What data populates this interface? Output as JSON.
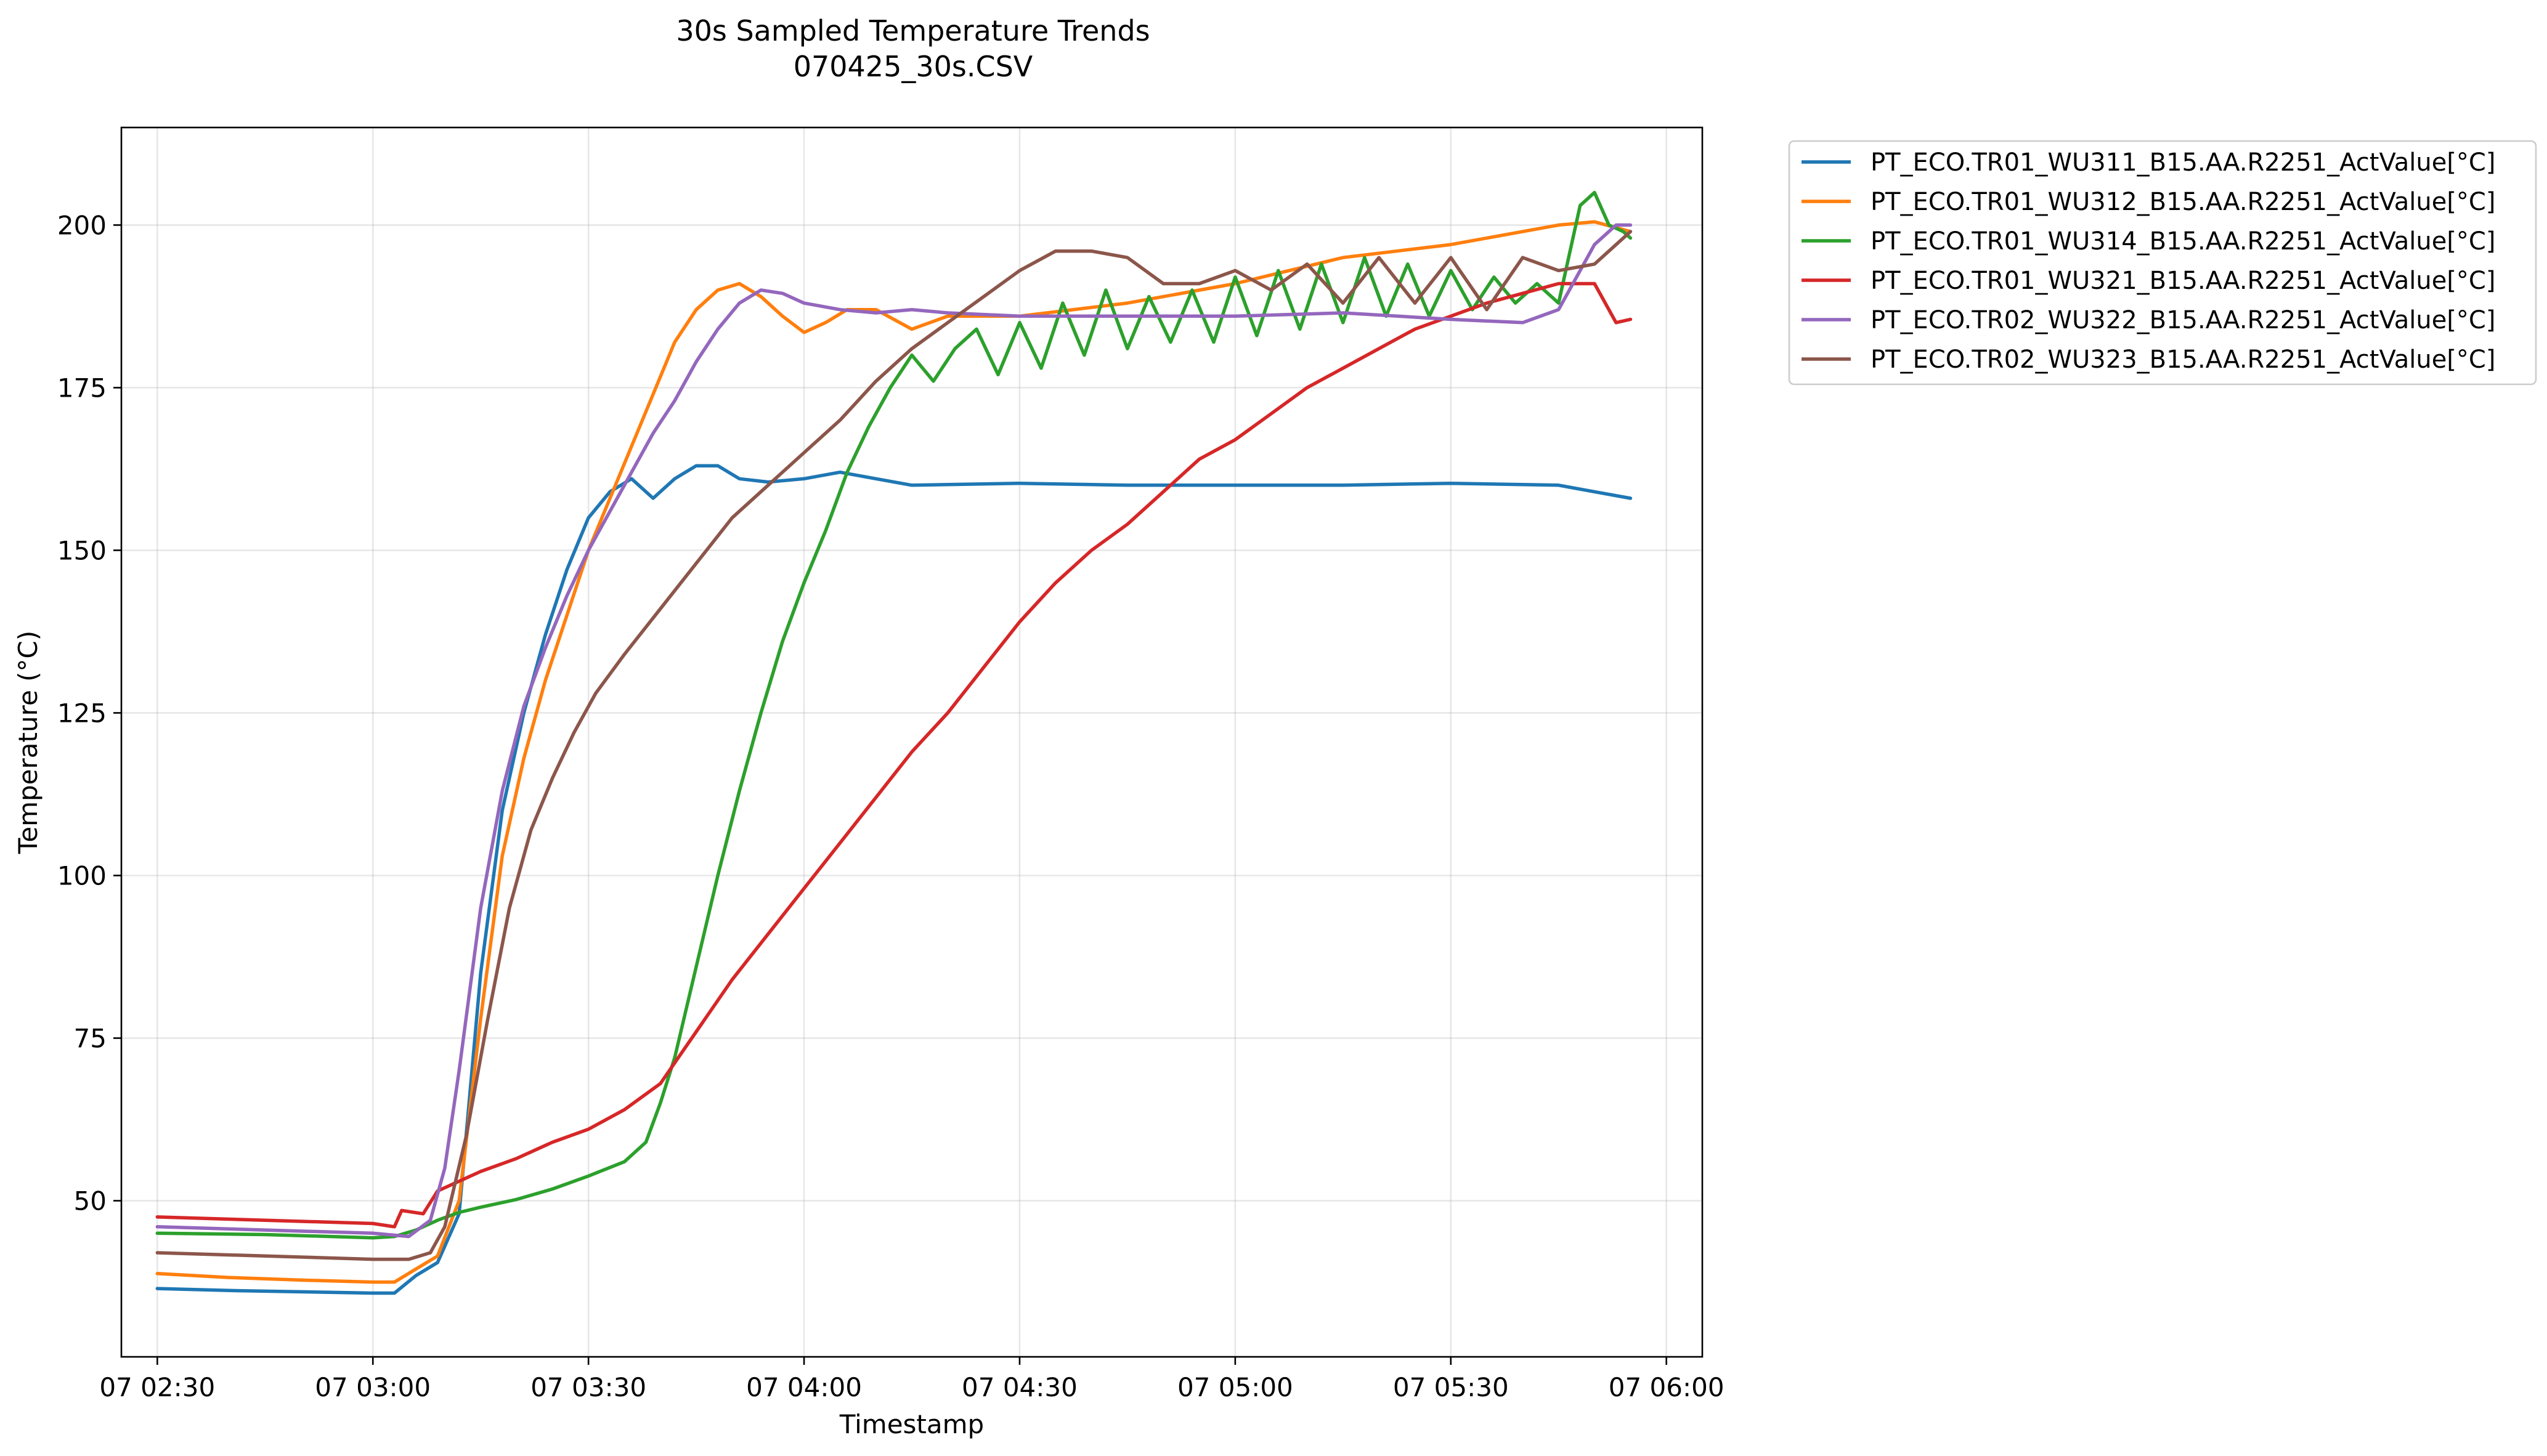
{
  "chart_data": {
    "type": "line",
    "title": "30s Sampled Temperature Trends",
    "subtitle": "070425_30s.CSV",
    "xlabel": "Timestamp",
    "ylabel": "Temperature (°C)",
    "x_type": "time",
    "xlim": [
      "07 02:25",
      "07 06:05"
    ],
    "ylim": [
      26,
      215
    ],
    "x_ticks": [
      {
        "label": "07 02:30",
        "value": "07 02:30"
      },
      {
        "label": "07 03:00",
        "value": "07 03:00"
      },
      {
        "label": "07 03:30",
        "value": "07 03:30"
      },
      {
        "label": "07 04:00",
        "value": "07 04:00"
      },
      {
        "label": "07 04:30",
        "value": "07 04:30"
      },
      {
        "label": "07 05:00",
        "value": "07 05:00"
      },
      {
        "label": "07 05:30",
        "value": "07 05:30"
      },
      {
        "label": "07 06:00",
        "value": "07 06:00"
      }
    ],
    "y_ticks": [
      50,
      75,
      100,
      125,
      150,
      175,
      200
    ],
    "grid": true,
    "legend_position": "outside-top-right",
    "series": [
      {
        "name": "PT_ECO.TR01_WU311_B15.AA.R2251_ActValue[°C]",
        "color": "#1f77b4",
        "x": [
          "07 02:30",
          "07 02:40",
          "07 02:50",
          "07 03:00",
          "07 03:03",
          "07 03:06",
          "07 03:09",
          "07 03:12",
          "07 03:15",
          "07 03:18",
          "07 03:21",
          "07 03:24",
          "07 03:27",
          "07 03:30",
          "07 03:33",
          "07 03:36",
          "07 03:39",
          "07 03:42",
          "07 03:45",
          "07 03:48",
          "07 03:51",
          "07 03:55",
          "07 04:00",
          "07 04:05",
          "07 04:10",
          "07 04:15",
          "07 04:30",
          "07 04:45",
          "07 05:00",
          "07 05:15",
          "07 05:30",
          "07 05:45",
          "07 05:50",
          "07 05:55"
        ],
        "y": [
          36.5,
          36.2,
          36.0,
          35.8,
          35.8,
          38.5,
          40.5,
          48,
          85,
          110,
          125,
          137,
          147,
          155,
          159,
          161,
          158,
          161,
          163,
          163,
          161,
          160.5,
          161,
          162,
          161,
          160,
          160.3,
          160,
          160,
          160,
          160.3,
          160,
          159,
          158
        ]
      },
      {
        "name": "PT_ECO.TR01_WU312_B15.AA.R2251_ActValue[°C]",
        "color": "#ff7f0e",
        "x": [
          "07 02:30",
          "07 02:40",
          "07 02:50",
          "07 03:00",
          "07 03:03",
          "07 03:06",
          "07 03:09",
          "07 03:12",
          "07 03:15",
          "07 03:18",
          "07 03:21",
          "07 03:24",
          "07 03:27",
          "07 03:30",
          "07 03:33",
          "07 03:36",
          "07 03:39",
          "07 03:42",
          "07 03:45",
          "07 03:48",
          "07 03:51",
          "07 03:54",
          "07 03:57",
          "07 04:00",
          "07 04:03",
          "07 04:06",
          "07 04:10",
          "07 04:15",
          "07 04:20",
          "07 04:30",
          "07 04:45",
          "07 05:00",
          "07 05:15",
          "07 05:30",
          "07 05:45",
          "07 05:50",
          "07 05:55"
        ],
        "y": [
          38.8,
          38.2,
          37.8,
          37.5,
          37.5,
          39.5,
          41.5,
          50,
          78,
          103,
          118,
          130,
          140,
          150,
          158,
          166,
          174,
          182,
          187,
          190,
          191,
          189,
          186,
          183.5,
          185,
          187,
          187,
          184,
          186,
          186,
          188,
          191,
          195,
          197,
          200,
          200.5,
          199
        ]
      },
      {
        "name": "PT_ECO.TR01_WU314_B15.AA.R2251_ActValue[°C]",
        "color": "#2ca02c",
        "x": [
          "07 02:30",
          "07 02:45",
          "07 03:00",
          "07 03:03",
          "07 03:06",
          "07 03:09",
          "07 03:12",
          "07 03:15",
          "07 03:20",
          "07 03:25",
          "07 03:30",
          "07 03:35",
          "07 03:38",
          "07 03:40",
          "07 03:42",
          "07 03:45",
          "07 03:48",
          "07 03:51",
          "07 03:54",
          "07 03:57",
          "07 04:00",
          "07 04:03",
          "07 04:06",
          "07 04:09",
          "07 04:12",
          "07 04:15",
          "07 04:18",
          "07 04:21",
          "07 04:24",
          "07 04:27",
          "07 04:30",
          "07 04:33",
          "07 04:36",
          "07 04:39",
          "07 04:42",
          "07 04:45",
          "07 04:48",
          "07 04:51",
          "07 04:54",
          "07 04:57",
          "07 05:00",
          "07 05:03",
          "07 05:06",
          "07 05:09",
          "07 05:12",
          "07 05:15",
          "07 05:18",
          "07 05:21",
          "07 05:24",
          "07 05:27",
          "07 05:30",
          "07 05:33",
          "07 05:36",
          "07 05:39",
          "07 05:42",
          "07 05:45",
          "07 05:48",
          "07 05:50",
          "07 05:52",
          "07 05:54",
          "07 05:55"
        ],
        "y": [
          45.0,
          44.8,
          44.3,
          44.5,
          45.5,
          47,
          48.2,
          49,
          50.2,
          51.8,
          53.8,
          56,
          59,
          65,
          72,
          86,
          100,
          113,
          125,
          136,
          145,
          153,
          162,
          169,
          175,
          180,
          176,
          181,
          184,
          177,
          185,
          178,
          188,
          180,
          190,
          181,
          189,
          182,
          190,
          182,
          192,
          183,
          193,
          184,
          194,
          185,
          195,
          186,
          194,
          186,
          193,
          187,
          192,
          188,
          191,
          188,
          203,
          205,
          200,
          199,
          198
        ]
      },
      {
        "name": "PT_ECO.TR01_WU321_B15.AA.R2251_ActValue[°C]",
        "color": "#d62728",
        "x": [
          "07 02:30",
          "07 02:45",
          "07 03:00",
          "07 03:03",
          "07 03:04",
          "07 03:07",
          "07 03:09",
          "07 03:12",
          "07 03:15",
          "07 03:20",
          "07 03:25",
          "07 03:30",
          "07 03:35",
          "07 03:40",
          "07 03:45",
          "07 03:50",
          "07 03:55",
          "07 04:00",
          "07 04:05",
          "07 04:10",
          "07 04:15",
          "07 04:20",
          "07 04:25",
          "07 04:30",
          "07 04:35",
          "07 04:40",
          "07 04:45",
          "07 04:50",
          "07 04:55",
          "07 05:00",
          "07 05:05",
          "07 05:10",
          "07 05:15",
          "07 05:20",
          "07 05:25",
          "07 05:30",
          "07 05:35",
          "07 05:40",
          "07 05:45",
          "07 05:50",
          "07 05:53",
          "07 05:55"
        ],
        "y": [
          47.5,
          47.0,
          46.5,
          46.0,
          48.5,
          48,
          51.5,
          53,
          54.5,
          56.5,
          59,
          61,
          64,
          68,
          76,
          84,
          91,
          98,
          105,
          112,
          119,
          125,
          132,
          139,
          145,
          150,
          154,
          159,
          164,
          167,
          171,
          175,
          178,
          181,
          184,
          186,
          188,
          189.5,
          191,
          191,
          185,
          185.5
        ]
      },
      {
        "name": "PT_ECO.TR02_WU322_B15.AA.R2251_ActValue[°C]",
        "color": "#9467bd",
        "x": [
          "07 02:30",
          "07 02:45",
          "07 03:00",
          "07 03:05",
          "07 03:08",
          "07 03:10",
          "07 03:12",
          "07 03:15",
          "07 03:18",
          "07 03:21",
          "07 03:24",
          "07 03:27",
          "07 03:30",
          "07 03:33",
          "07 03:36",
          "07 03:39",
          "07 03:42",
          "07 03:45",
          "07 03:48",
          "07 03:51",
          "07 03:54",
          "07 03:57",
          "07 04:00",
          "07 04:05",
          "07 04:10",
          "07 04:15",
          "07 04:20",
          "07 04:30",
          "07 04:45",
          "07 05:00",
          "07 05:15",
          "07 05:30",
          "07 05:40",
          "07 05:45",
          "07 05:50",
          "07 05:53",
          "07 05:55"
        ],
        "y": [
          46.0,
          45.5,
          45.0,
          44.5,
          47,
          55,
          70,
          95,
          113,
          126,
          135,
          143,
          150,
          156,
          162,
          168,
          173,
          179,
          184,
          188,
          190,
          189.5,
          188,
          187,
          186.5,
          187,
          186.5,
          186,
          186,
          186,
          186.5,
          185.5,
          185,
          187,
          197,
          200,
          200
        ]
      },
      {
        "name": "PT_ECO.TR02_WU323_B15.AA.R2251_ActValue[°C]",
        "color": "#8c564b",
        "x": [
          "07 02:30",
          "07 02:45",
          "07 03:00",
          "07 03:05",
          "07 03:08",
          "07 03:10",
          "07 03:13",
          "07 03:16",
          "07 03:19",
          "07 03:22",
          "07 03:25",
          "07 03:28",
          "07 03:31",
          "07 03:35",
          "07 03:40",
          "07 03:45",
          "07 03:50",
          "07 03:55",
          "07 04:00",
          "07 04:05",
          "07 04:10",
          "07 04:15",
          "07 04:20",
          "07 04:25",
          "07 04:30",
          "07 04:35",
          "07 04:40",
          "07 04:45",
          "07 04:50",
          "07 04:55",
          "07 05:00",
          "07 05:05",
          "07 05:10",
          "07 05:15",
          "07 05:20",
          "07 05:25",
          "07 05:30",
          "07 05:35",
          "07 05:40",
          "07 05:45",
          "07 05:50",
          "07 05:55"
        ],
        "y": [
          42.0,
          41.5,
          41.0,
          41.0,
          42,
          46,
          60,
          78,
          95,
          107,
          115,
          122,
          128,
          134,
          141,
          148,
          155,
          160,
          165,
          170,
          176,
          181,
          185,
          189,
          193,
          196,
          196,
          195,
          191,
          191,
          193,
          190,
          194,
          188,
          195,
          188,
          195,
          187,
          195,
          193,
          194,
          199
        ]
      }
    ]
  }
}
